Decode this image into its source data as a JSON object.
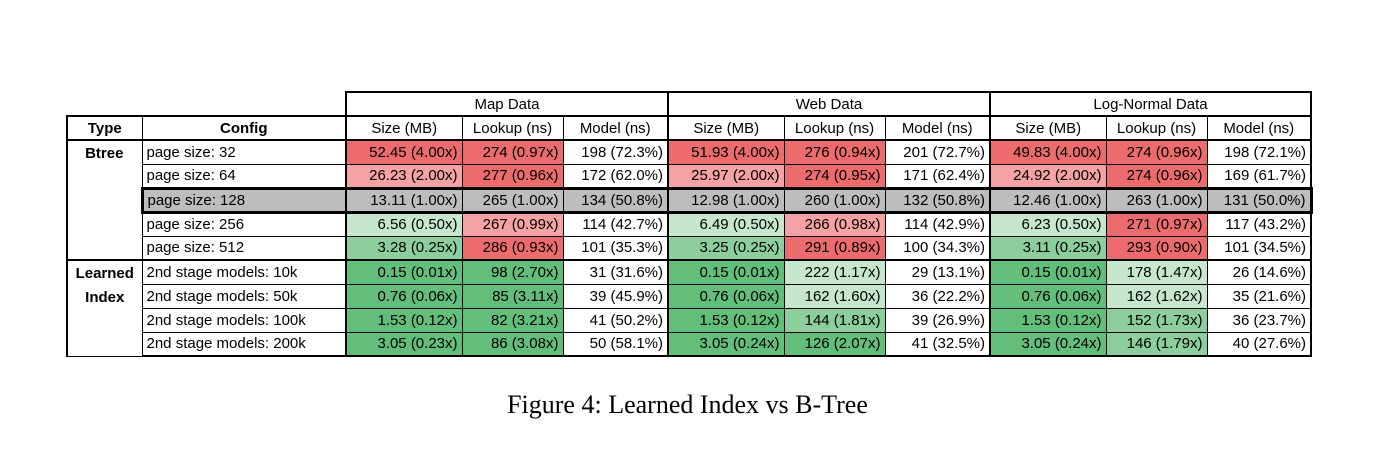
{
  "colors": {
    "red_strong": "#ec6c6e",
    "red_mid": "#f4a2a3",
    "baseline_gray": "#bdbdbd",
    "green_strong": "#63be7b",
    "green_mid": "#8dce9d",
    "green_light": "#c6e6cd",
    "white": "#ffffff"
  },
  "groups": [
    "Map Data",
    "Web Data",
    "Log-Normal Data"
  ],
  "headers": {
    "type": "Type",
    "config": "Config",
    "size": "Size (MB)",
    "lookup": "Lookup (ns)",
    "model": "Model (ns)"
  },
  "row_groups": [
    {
      "type": "Btree",
      "type_lines": [
        "Btree"
      ]
    },
    {
      "type": "Learned Index",
      "type_lines": [
        "Learned",
        "Index"
      ]
    }
  ],
  "rows": [
    {
      "group": 0,
      "config": "page size:   32",
      "baseline": false,
      "cells": [
        {
          "text": "52.45  (4.00x)",
          "color": "red_strong"
        },
        {
          "text": "274 (0.97x)",
          "color": "red_strong"
        },
        {
          "text": "198  (72.3%)",
          "color": "white"
        },
        {
          "text": "51.93  (4.00x)",
          "color": "red_strong"
        },
        {
          "text": "276 (0.94x)",
          "color": "red_strong"
        },
        {
          "text": "201  (72.7%)",
          "color": "white"
        },
        {
          "text": "49.83  (4.00x)",
          "color": "red_strong"
        },
        {
          "text": "274 (0.96x)",
          "color": "red_strong"
        },
        {
          "text": "198  (72.1%)",
          "color": "white"
        }
      ]
    },
    {
      "group": 0,
      "config": "page size:   64",
      "baseline": false,
      "cells": [
        {
          "text": "26.23  (2.00x)",
          "color": "red_mid"
        },
        {
          "text": "277 (0.96x)",
          "color": "red_strong"
        },
        {
          "text": "172  (62.0%)",
          "color": "white"
        },
        {
          "text": "25.97  (2.00x)",
          "color": "red_mid"
        },
        {
          "text": "274 (0.95x)",
          "color": "red_strong"
        },
        {
          "text": "171  (62.4%)",
          "color": "white"
        },
        {
          "text": "24.92  (2.00x)",
          "color": "red_mid"
        },
        {
          "text": "274 (0.96x)",
          "color": "red_strong"
        },
        {
          "text": "169  (61.7%)",
          "color": "white"
        }
      ]
    },
    {
      "group": 0,
      "config": "page size: 128",
      "baseline": true,
      "cells": [
        {
          "text": "13.11  (1.00x)",
          "color": "baseline_gray"
        },
        {
          "text": "265  (1.00x)",
          "color": "baseline_gray"
        },
        {
          "text": "134  (50.8%)",
          "color": "baseline_gray"
        },
        {
          "text": "12.98  (1.00x)",
          "color": "baseline_gray"
        },
        {
          "text": "260  (1.00x)",
          "color": "baseline_gray"
        },
        {
          "text": "132  (50.8%)",
          "color": "baseline_gray"
        },
        {
          "text": "12.46  (1.00x)",
          "color": "baseline_gray"
        },
        {
          "text": "263  (1.00x)",
          "color": "baseline_gray"
        },
        {
          "text": "131  (50.0%)",
          "color": "baseline_gray"
        }
      ]
    },
    {
      "group": 0,
      "config": "page size: 256",
      "baseline": false,
      "cells": [
        {
          "text": "6.56  (0.50x)",
          "color": "green_light"
        },
        {
          "text": "267  (0.99x)",
          "color": "red_mid"
        },
        {
          "text": "114  (42.7%)",
          "color": "white"
        },
        {
          "text": "6.49  (0.50x)",
          "color": "green_light"
        },
        {
          "text": "266  (0.98x)",
          "color": "red_mid"
        },
        {
          "text": "114  (42.9%)",
          "color": "white"
        },
        {
          "text": "6.23  (0.50x)",
          "color": "green_light"
        },
        {
          "text": "271  (0.97x)",
          "color": "red_strong"
        },
        {
          "text": "117  (43.2%)",
          "color": "white"
        }
      ]
    },
    {
      "group": 0,
      "config": "page size: 512",
      "baseline": false,
      "cells": [
        {
          "text": "3.28  (0.25x)",
          "color": "green_mid"
        },
        {
          "text": "286  (0.93x)",
          "color": "red_strong"
        },
        {
          "text": "101  (35.3%)",
          "color": "white"
        },
        {
          "text": "3.25  (0.25x)",
          "color": "green_mid"
        },
        {
          "text": "291  (0.89x)",
          "color": "red_strong"
        },
        {
          "text": "100  (34.3%)",
          "color": "white"
        },
        {
          "text": "3.11  (0.25x)",
          "color": "green_mid"
        },
        {
          "text": "293  (0.90x)",
          "color": "red_strong"
        },
        {
          "text": "101  (34.5%)",
          "color": "white"
        }
      ]
    },
    {
      "group": 1,
      "config": "2nd stage models:   10k",
      "baseline": false,
      "cells": [
        {
          "text": "0.15  (0.01x)",
          "color": "green_strong"
        },
        {
          "text": "98  (2.70x)",
          "color": "green_strong"
        },
        {
          "text": "31  (31.6%)",
          "color": "white"
        },
        {
          "text": "0.15  (0.01x)",
          "color": "green_strong"
        },
        {
          "text": "222  (1.17x)",
          "color": "green_light"
        },
        {
          "text": "29  (13.1%)",
          "color": "white"
        },
        {
          "text": "0.15  (0.01x)",
          "color": "green_strong"
        },
        {
          "text": "178  (1.47x)",
          "color": "green_light"
        },
        {
          "text": "26  (14.6%)",
          "color": "white"
        }
      ]
    },
    {
      "group": 1,
      "config": "2nd stage models:   50k",
      "baseline": false,
      "cells": [
        {
          "text": "0.76  (0.06x)",
          "color": "green_strong"
        },
        {
          "text": "85  (3.11x)",
          "color": "green_strong"
        },
        {
          "text": "39  (45.9%)",
          "color": "white"
        },
        {
          "text": "0.76  (0.06x)",
          "color": "green_strong"
        },
        {
          "text": "162  (1.60x)",
          "color": "green_light"
        },
        {
          "text": "36  (22.2%)",
          "color": "white"
        },
        {
          "text": "0.76  (0.06x)",
          "color": "green_strong"
        },
        {
          "text": "162  (1.62x)",
          "color": "green_light"
        },
        {
          "text": "35  (21.6%)",
          "color": "white"
        }
      ]
    },
    {
      "group": 1,
      "config": "2nd stage models: 100k",
      "baseline": false,
      "cells": [
        {
          "text": "1.53  (0.12x)",
          "color": "green_strong"
        },
        {
          "text": "82  (3.21x)",
          "color": "green_strong"
        },
        {
          "text": "41  (50.2%)",
          "color": "white"
        },
        {
          "text": "1.53  (0.12x)",
          "color": "green_strong"
        },
        {
          "text": "144  (1.81x)",
          "color": "green_mid"
        },
        {
          "text": "39  (26.9%)",
          "color": "white"
        },
        {
          "text": "1.53  (0.12x)",
          "color": "green_strong"
        },
        {
          "text": "152  (1.73x)",
          "color": "green_mid"
        },
        {
          "text": "36  (23.7%)",
          "color": "white"
        }
      ]
    },
    {
      "group": 1,
      "config": "2nd stage models: 200k",
      "baseline": false,
      "cells": [
        {
          "text": "3.05  (0.23x)",
          "color": "green_strong"
        },
        {
          "text": "86  (3.08x)",
          "color": "green_strong"
        },
        {
          "text": "50  (58.1%)",
          "color": "white"
        },
        {
          "text": "3.05  (0.24x)",
          "color": "green_strong"
        },
        {
          "text": "126  (2.07x)",
          "color": "green_strong"
        },
        {
          "text": "41  (32.5%)",
          "color": "white"
        },
        {
          "text": "3.05  (0.24x)",
          "color": "green_strong"
        },
        {
          "text": "146  (1.79x)",
          "color": "green_mid"
        },
        {
          "text": "40  (27.6%)",
          "color": "white"
        }
      ]
    }
  ],
  "caption": "Figure 4: Learned Index vs B-Tree"
}
